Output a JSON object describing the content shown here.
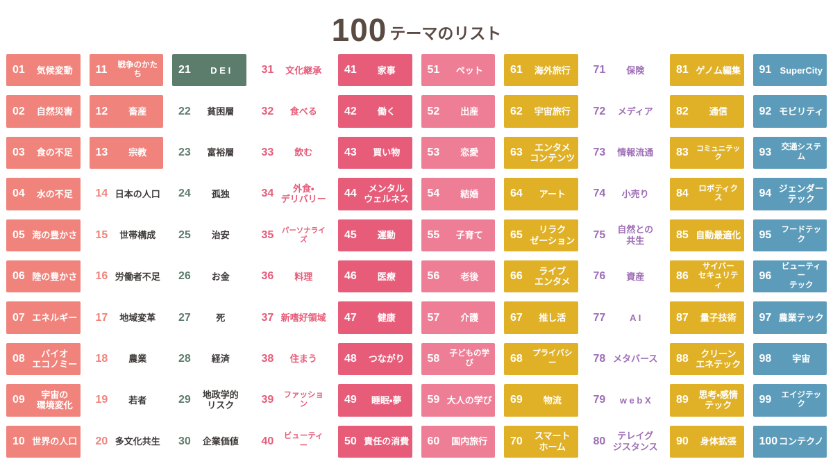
{
  "title": {
    "number": "100",
    "suffix": "テーマのリスト"
  },
  "colors": {
    "salmon": "#F0837B",
    "green": "#5C7C6C",
    "crimson": "#E65C79",
    "pink": "#EE7E96",
    "gold": "#E0B127",
    "purple": "#9D6DB5",
    "blue": "#5C9CBA",
    "dark_label": "#3E3A39",
    "title_text": "#594A42"
  },
  "themes": [
    {
      "n": "01",
      "t": "気候変動",
      "c": "salmon",
      "v": "s"
    },
    {
      "n": "02",
      "t": "自然災害",
      "c": "salmon",
      "v": "s"
    },
    {
      "n": "03",
      "t": "食の不足",
      "c": "salmon",
      "v": "s"
    },
    {
      "n": "04",
      "t": "水の不足",
      "c": "salmon",
      "v": "s"
    },
    {
      "n": "05",
      "t": "海の豊かさ",
      "c": "salmon",
      "v": "s"
    },
    {
      "n": "06",
      "t": "陸の豊かさ",
      "c": "salmon",
      "v": "s"
    },
    {
      "n": "07",
      "t": "エネルギー",
      "c": "salmon",
      "v": "s"
    },
    {
      "n": "08",
      "t": "バイオ\nエコノミー",
      "c": "salmon",
      "v": "s"
    },
    {
      "n": "09",
      "t": "宇宙の\n環境変化",
      "c": "salmon",
      "v": "s"
    },
    {
      "n": "10",
      "t": "世界の人口",
      "c": "salmon",
      "v": "s"
    },
    {
      "n": "11",
      "t": "戦争のかたち",
      "c": "salmon",
      "v": "s"
    },
    {
      "n": "12",
      "t": "畜産",
      "c": "salmon",
      "v": "s"
    },
    {
      "n": "13",
      "t": "宗教",
      "c": "salmon",
      "v": "s"
    },
    {
      "n": "14",
      "t": "日本の人口",
      "c": "salmon",
      "v": "wd"
    },
    {
      "n": "15",
      "t": "世帯構成",
      "c": "salmon",
      "v": "wd"
    },
    {
      "n": "16",
      "t": "労働者不足",
      "c": "salmon",
      "v": "wd"
    },
    {
      "n": "17",
      "t": "地域変革",
      "c": "salmon",
      "v": "wd"
    },
    {
      "n": "18",
      "t": "農業",
      "c": "salmon",
      "v": "wd"
    },
    {
      "n": "19",
      "t": "若者",
      "c": "salmon",
      "v": "wd"
    },
    {
      "n": "20",
      "t": "多文化共生",
      "c": "salmon",
      "v": "wd"
    },
    {
      "n": "21",
      "t": "D E I",
      "c": "green",
      "v": "s"
    },
    {
      "n": "22",
      "t": "貧困層",
      "c": "green",
      "v": "wd"
    },
    {
      "n": "23",
      "t": "富裕層",
      "c": "green",
      "v": "wd"
    },
    {
      "n": "24",
      "t": "孤独",
      "c": "green",
      "v": "wd"
    },
    {
      "n": "25",
      "t": "治安",
      "c": "green",
      "v": "wd"
    },
    {
      "n": "26",
      "t": "お金",
      "c": "green",
      "v": "wd"
    },
    {
      "n": "27",
      "t": "死",
      "c": "green",
      "v": "wd"
    },
    {
      "n": "28",
      "t": "経済",
      "c": "green",
      "v": "wd"
    },
    {
      "n": "29",
      "t": "地政学的\nリスク",
      "c": "green",
      "v": "wd"
    },
    {
      "n": "30",
      "t": "企業価値",
      "c": "green",
      "v": "wd"
    },
    {
      "n": "31",
      "t": "文化継承",
      "c": "crimson",
      "v": "wc"
    },
    {
      "n": "32",
      "t": "食べる",
      "c": "crimson",
      "v": "wc"
    },
    {
      "n": "33",
      "t": "飲む",
      "c": "crimson",
      "v": "wc"
    },
    {
      "n": "34",
      "t": "外食・\nデリバリー",
      "c": "crimson",
      "v": "wc"
    },
    {
      "n": "35",
      "t": "パーソナライズ",
      "c": "crimson",
      "v": "wc"
    },
    {
      "n": "36",
      "t": "料理",
      "c": "crimson",
      "v": "wc"
    },
    {
      "n": "37",
      "t": "新嗜好領域",
      "c": "crimson",
      "v": "wc"
    },
    {
      "n": "38",
      "t": "住まう",
      "c": "crimson",
      "v": "wc"
    },
    {
      "n": "39",
      "t": "ファッション",
      "c": "crimson",
      "v": "wc"
    },
    {
      "n": "40",
      "t": "ビューティー",
      "c": "crimson",
      "v": "wc"
    },
    {
      "n": "41",
      "t": "家事",
      "c": "crimson",
      "v": "s"
    },
    {
      "n": "42",
      "t": "働く",
      "c": "crimson",
      "v": "s"
    },
    {
      "n": "43",
      "t": "買い物",
      "c": "crimson",
      "v": "s"
    },
    {
      "n": "44",
      "t": "メンタル\nウェルネス",
      "c": "crimson",
      "v": "s"
    },
    {
      "n": "45",
      "t": "運動",
      "c": "crimson",
      "v": "s"
    },
    {
      "n": "46",
      "t": "医療",
      "c": "crimson",
      "v": "s"
    },
    {
      "n": "47",
      "t": "健康",
      "c": "crimson",
      "v": "s"
    },
    {
      "n": "48",
      "t": "つながり",
      "c": "crimson",
      "v": "s"
    },
    {
      "n": "49",
      "t": "睡眠・夢",
      "c": "crimson",
      "v": "s"
    },
    {
      "n": "50",
      "t": "責任の消費",
      "c": "crimson",
      "v": "s"
    },
    {
      "n": "51",
      "t": "ペット",
      "c": "pink",
      "v": "s"
    },
    {
      "n": "52",
      "t": "出産",
      "c": "pink",
      "v": "s"
    },
    {
      "n": "53",
      "t": "恋愛",
      "c": "pink",
      "v": "s"
    },
    {
      "n": "54",
      "t": "結婚",
      "c": "pink",
      "v": "s"
    },
    {
      "n": "55",
      "t": "子育て",
      "c": "pink",
      "v": "s"
    },
    {
      "n": "56",
      "t": "老後",
      "c": "pink",
      "v": "s"
    },
    {
      "n": "57",
      "t": "介護",
      "c": "pink",
      "v": "s"
    },
    {
      "n": "58",
      "t": "子どもの学び",
      "c": "pink",
      "v": "s"
    },
    {
      "n": "59",
      "t": "大人の学び",
      "c": "pink",
      "v": "s"
    },
    {
      "n": "60",
      "t": "国内旅行",
      "c": "pink",
      "v": "s"
    },
    {
      "n": "61",
      "t": "海外旅行",
      "c": "gold",
      "v": "s"
    },
    {
      "n": "62",
      "t": "宇宙旅行",
      "c": "gold",
      "v": "s"
    },
    {
      "n": "63",
      "t": "エンタメ\nコンテンツ",
      "c": "gold",
      "v": "s"
    },
    {
      "n": "64",
      "t": "アート",
      "c": "gold",
      "v": "s"
    },
    {
      "n": "65",
      "t": "リラク\nゼーション",
      "c": "gold",
      "v": "s"
    },
    {
      "n": "66",
      "t": "ライブ\nエンタメ",
      "c": "gold",
      "v": "s"
    },
    {
      "n": "67",
      "t": "推し活",
      "c": "gold",
      "v": "s"
    },
    {
      "n": "68",
      "t": "プライバシー",
      "c": "gold",
      "v": "s"
    },
    {
      "n": "69",
      "t": "物流",
      "c": "gold",
      "v": "s"
    },
    {
      "n": "70",
      "t": "スマート\nホーム",
      "c": "gold",
      "v": "s"
    },
    {
      "n": "71",
      "t": "保険",
      "c": "purple",
      "v": "wc"
    },
    {
      "n": "72",
      "t": "メディア",
      "c": "purple",
      "v": "wc"
    },
    {
      "n": "73",
      "t": "情報流通",
      "c": "purple",
      "v": "wc"
    },
    {
      "n": "74",
      "t": "小売り",
      "c": "purple",
      "v": "wc"
    },
    {
      "n": "75",
      "t": "自然との\n共生",
      "c": "purple",
      "v": "wc"
    },
    {
      "n": "76",
      "t": "資産",
      "c": "purple",
      "v": "wc"
    },
    {
      "n": "77",
      "t": "A I",
      "c": "purple",
      "v": "wc"
    },
    {
      "n": "78",
      "t": "メタバース",
      "c": "purple",
      "v": "wc"
    },
    {
      "n": "79",
      "t": "w e b X",
      "c": "purple",
      "v": "wc"
    },
    {
      "n": "80",
      "t": "テレイグ\nジスタンス",
      "c": "purple",
      "v": "wc"
    },
    {
      "n": "81",
      "t": "ゲノム編集",
      "c": "gold",
      "v": "s"
    },
    {
      "n": "82",
      "t": "通信",
      "c": "gold",
      "v": "s"
    },
    {
      "n": "83",
      "t": "コミュニテック",
      "c": "gold",
      "v": "s"
    },
    {
      "n": "84",
      "t": "ロボティクス",
      "c": "gold",
      "v": "s"
    },
    {
      "n": "85",
      "t": "自動最適化",
      "c": "gold",
      "v": "s"
    },
    {
      "n": "86",
      "t": "サイバー\nセキュリティ",
      "c": "gold",
      "v": "s"
    },
    {
      "n": "87",
      "t": "量子技術",
      "c": "gold",
      "v": "s"
    },
    {
      "n": "88",
      "t": "クリーン\nエネテック",
      "c": "gold",
      "v": "s"
    },
    {
      "n": "89",
      "t": "思考・感情\nテック",
      "c": "gold",
      "v": "s"
    },
    {
      "n": "90",
      "t": "身体拡張",
      "c": "gold",
      "v": "s"
    },
    {
      "n": "91",
      "t": "SuperCity",
      "c": "blue",
      "v": "s"
    },
    {
      "n": "92",
      "t": "モビリティ",
      "c": "blue",
      "v": "s"
    },
    {
      "n": "93",
      "t": "交通システム",
      "c": "blue",
      "v": "s"
    },
    {
      "n": "94",
      "t": "ジェンダー\nテック",
      "c": "blue",
      "v": "s"
    },
    {
      "n": "95",
      "t": "フードテック",
      "c": "blue",
      "v": "s"
    },
    {
      "n": "96",
      "t": "ビューティー\nテック",
      "c": "blue",
      "v": "s"
    },
    {
      "n": "97",
      "t": "農業テック",
      "c": "blue",
      "v": "s"
    },
    {
      "n": "98",
      "t": "宇宙",
      "c": "blue",
      "v": "s"
    },
    {
      "n": "99",
      "t": "エイジテック",
      "c": "blue",
      "v": "s"
    },
    {
      "n": "100",
      "t": "コンテクノ",
      "c": "blue",
      "v": "s"
    }
  ]
}
